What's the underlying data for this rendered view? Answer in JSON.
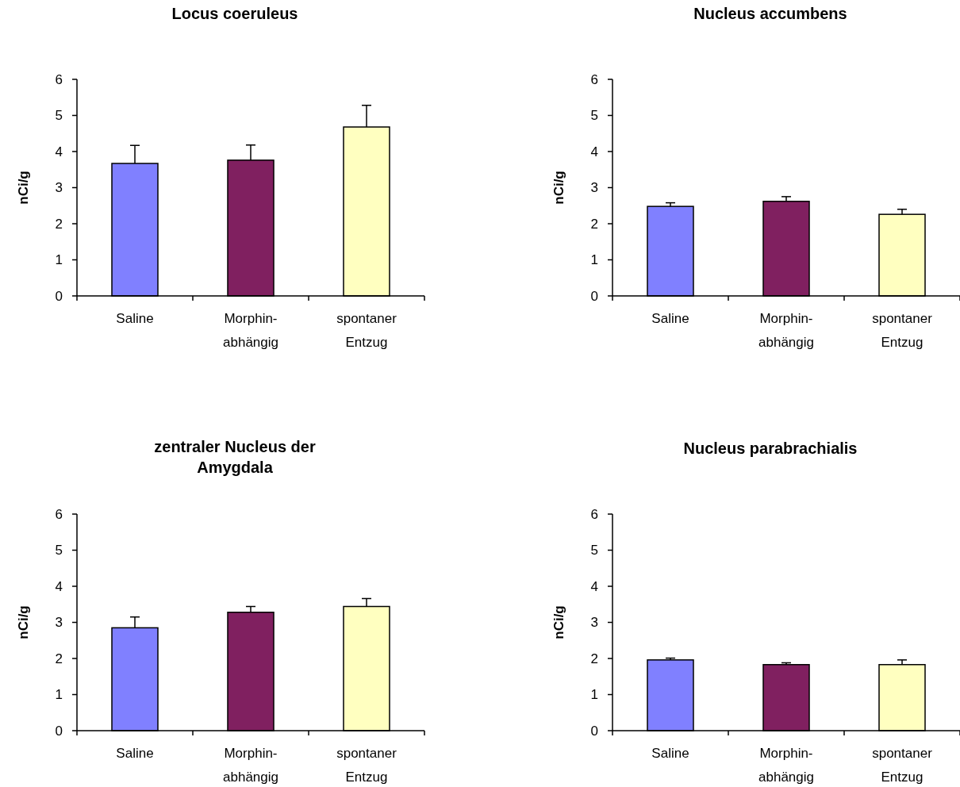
{
  "chart_data": [
    {
      "type": "bar",
      "title": "Locus coeruleus",
      "ylabel": "nCi/g",
      "categories": [
        "Saline",
        "Morphin-\nabhängig",
        "spontaner\nEntzug"
      ],
      "values": [
        3.67,
        3.76,
        4.68
      ],
      "errors": [
        0.5,
        0.42,
        0.6
      ],
      "colors": [
        "#8080ff",
        "#802060",
        "#ffffc0"
      ],
      "ylim": [
        0,
        6
      ],
      "yticks": [
        0,
        1,
        2,
        3,
        4,
        5,
        6
      ]
    },
    {
      "type": "bar",
      "title": "Nucleus accumbens",
      "ylabel": "nCi/g",
      "categories": [
        "Saline",
        "Morphin-\nabhängig",
        "spontaner\nEntzug"
      ],
      "values": [
        2.48,
        2.62,
        2.26
      ],
      "errors": [
        0.1,
        0.13,
        0.14
      ],
      "colors": [
        "#8080ff",
        "#802060",
        "#ffffc0"
      ],
      "ylim": [
        0,
        6
      ],
      "yticks": [
        0,
        1,
        2,
        3,
        4,
        5,
        6
      ]
    },
    {
      "type": "bar",
      "title": "zentraler Nucleus der Amygdala",
      "ylabel": "nCi/g",
      "categories": [
        "Saline",
        "Morphin-\nabhängig",
        "spontaner\nEntzug"
      ],
      "values": [
        2.85,
        3.28,
        3.44
      ],
      "errors": [
        0.3,
        0.16,
        0.22
      ],
      "colors": [
        "#8080ff",
        "#802060",
        "#ffffc0"
      ],
      "ylim": [
        0,
        6
      ],
      "yticks": [
        0,
        1,
        2,
        3,
        4,
        5,
        6
      ]
    },
    {
      "type": "bar",
      "title": "Nucleus parabrachialis",
      "ylabel": "nCi/g",
      "categories": [
        "Saline",
        "Morphin-\nabhängig",
        "spontaner\nEntzug"
      ],
      "values": [
        1.96,
        1.83,
        1.83
      ],
      "errors": [
        0.05,
        0.05,
        0.13
      ],
      "colors": [
        "#8080ff",
        "#802060",
        "#ffffc0"
      ],
      "ylim": [
        0,
        6
      ],
      "yticks": [
        0,
        1,
        2,
        3,
        4,
        5,
        6
      ]
    }
  ]
}
